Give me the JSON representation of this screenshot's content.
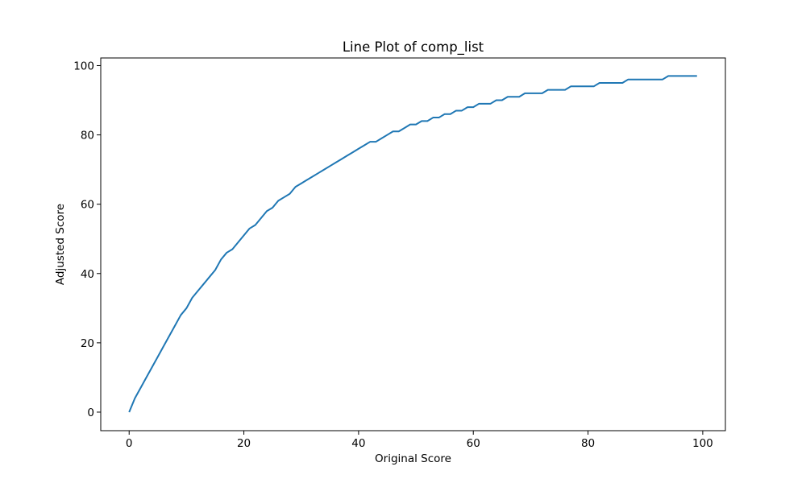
{
  "chart_data": {
    "type": "line",
    "title": "Line Plot of comp_list",
    "xlabel": "Original Score",
    "ylabel": "Adjusted Score",
    "xlim": [
      -4.95,
      103.95
    ],
    "ylim": [
      -5.35,
      102.2
    ],
    "xticks": [
      0,
      20,
      40,
      60,
      80,
      100
    ],
    "yticks": [
      0,
      20,
      40,
      60,
      80,
      100
    ],
    "xtick_labels": [
      "0",
      "20",
      "40",
      "60",
      "80",
      "100"
    ],
    "ytick_labels": [
      "0",
      "20",
      "40",
      "60",
      "80",
      "100"
    ],
    "grid": false,
    "line_color": "#1f77b4",
    "series": [
      {
        "x": [
          0,
          1,
          2,
          3,
          4,
          5,
          6,
          7,
          8,
          9,
          10,
          11,
          12,
          13,
          14,
          15,
          16,
          17,
          18,
          19,
          20,
          21,
          22,
          23,
          24,
          25,
          26,
          27,
          28,
          29,
          30,
          31,
          32,
          33,
          34,
          35,
          36,
          37,
          38,
          39,
          40,
          41,
          42,
          43,
          44,
          45,
          46,
          47,
          48,
          49,
          50,
          51,
          52,
          53,
          54,
          55,
          56,
          57,
          58,
          59,
          60,
          61,
          62,
          63,
          64,
          65,
          66,
          67,
          68,
          69,
          70,
          71,
          72,
          73,
          74,
          75,
          76,
          77,
          78,
          79,
          80,
          81,
          82,
          83,
          84,
          85,
          86,
          87,
          88,
          89,
          90,
          91,
          92,
          93,
          94,
          95,
          96,
          97,
          98,
          99
        ],
        "values": [
          0,
          4,
          7,
          10,
          13,
          16,
          19,
          22,
          25,
          28,
          30,
          33,
          35,
          37,
          39,
          41,
          44,
          46,
          47,
          49,
          51,
          53,
          54,
          56,
          58,
          59,
          61,
          62,
          63,
          65,
          66,
          67,
          68,
          69,
          70,
          71,
          72,
          73,
          74,
          75,
          76,
          77,
          78,
          78,
          79,
          80,
          81,
          81,
          82,
          83,
          83,
          84,
          84,
          85,
          85,
          86,
          86,
          87,
          87,
          88,
          88,
          89,
          89,
          89,
          90,
          90,
          91,
          91,
          91,
          92,
          92,
          92,
          92,
          93,
          93,
          93,
          93,
          94,
          94,
          94,
          94,
          94,
          95,
          95,
          95,
          95,
          95,
          96,
          96,
          96,
          96,
          96,
          96,
          96,
          97,
          97,
          97,
          97,
          97,
          97
        ]
      }
    ]
  }
}
